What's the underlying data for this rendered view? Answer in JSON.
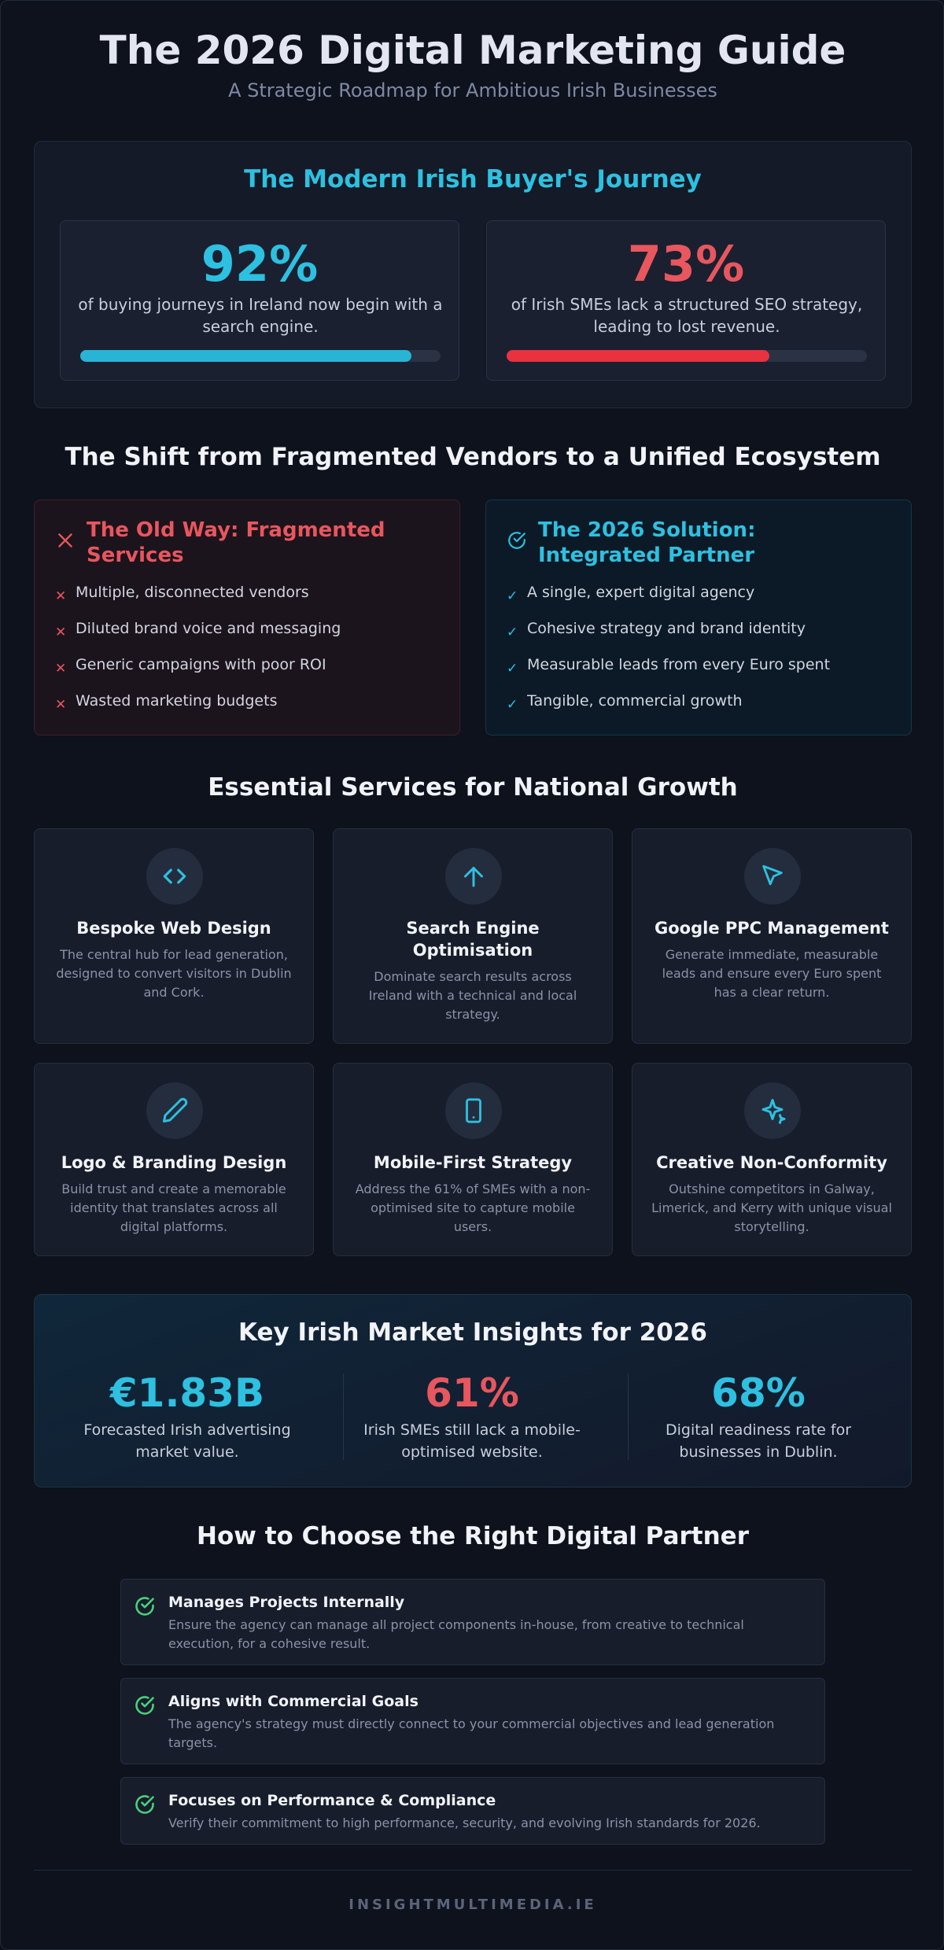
{
  "header": {
    "title": "The 2026 Digital Marketing Guide",
    "subtitle": "A Strategic Roadmap for Ambitious Irish Businesses"
  },
  "journey": {
    "title": "The Modern Irish Buyer's Journey",
    "stats": [
      {
        "value": "92%",
        "text": "of buying journeys in Ireland now begin with a search engine.",
        "progress_percent": 92,
        "color": "#29b4d6"
      },
      {
        "value": "73%",
        "text": "of Irish SMEs lack a structured SEO strategy, leading to lost revenue.",
        "progress_percent": 73,
        "color": "#e8323f"
      }
    ]
  },
  "shift": {
    "title": "The Shift from Fragmented Vendors to a Unified Ecosystem",
    "old": {
      "title": "The Old Way: Fragmented Services",
      "icon": "x-icon",
      "mark": "✕",
      "items": [
        "Multiple, disconnected vendors",
        "Diluted brand voice and messaging",
        "Generic campaigns with poor ROI",
        "Wasted marketing budgets"
      ]
    },
    "new": {
      "title": "The 2026 Solution: Integrated Partner",
      "icon": "check-circle-icon",
      "mark": "✓",
      "items": [
        "A single, expert digital agency",
        "Cohesive strategy and brand identity",
        "Measurable leads from every Euro spent",
        "Tangible, commercial growth"
      ]
    }
  },
  "services": {
    "title": "Essential Services for National Growth",
    "items": [
      {
        "title": "Bespoke Web Design",
        "desc": "The central hub for lead generation, designed to convert visitors in Dublin and Cork.",
        "icon": "code-icon"
      },
      {
        "title": "Search Engine Optimisation",
        "desc": "Dominate search results across Ireland with a technical and local strategy.",
        "icon": "arrow-up-icon"
      },
      {
        "title": "Google PPC Management",
        "desc": "Generate immediate, measurable leads and ensure every Euro spent has a clear return.",
        "icon": "cursor-icon"
      },
      {
        "title": "Logo & Branding Design",
        "desc": "Build trust and create a memorable identity that translates across all digital platforms.",
        "icon": "pen-icon"
      },
      {
        "title": "Mobile-First Strategy",
        "desc": "Address the 61% of SMEs with a non-optimised site to capture mobile users.",
        "icon": "smartphone-icon"
      },
      {
        "title": "Creative Non-Conformity",
        "desc": "Outshine competitors in Galway, Limerick, and Kerry with unique visual storytelling.",
        "icon": "sparkle-icon"
      }
    ]
  },
  "insights": {
    "title": "Key Irish Market Insights for 2026",
    "items": [
      {
        "value": "€1.83B",
        "text": "Forecasted Irish advertising market value.",
        "color": "#2ec0e0"
      },
      {
        "value": "61%",
        "text": "Irish SMEs still lack a mobile-optimised website.",
        "color": "#e8565e"
      },
      {
        "value": "68%",
        "text": "Digital readiness rate for businesses in Dublin.",
        "color": "#2ec0e0"
      }
    ]
  },
  "choose": {
    "title": "How to Choose the Right Digital Partner",
    "items": [
      {
        "title": "Manages Projects Internally",
        "text": "Ensure the agency can manage all project components in-house, from creative to technical execution, for a cohesive result."
      },
      {
        "title": "Aligns with Commercial Goals",
        "text": "The agency's strategy must directly connect to your commercial objectives and lead generation targets."
      },
      {
        "title": "Focuses on Performance & Compliance",
        "text": "Verify their commitment to high performance, security, and evolving Irish standards for 2026."
      }
    ]
  },
  "footer": {
    "text": "INSIGHTMULTIMEDIA.IE"
  },
  "colors": {
    "cyan": "#2ec0e0",
    "red": "#e8565e",
    "green": "#4ad07a"
  }
}
